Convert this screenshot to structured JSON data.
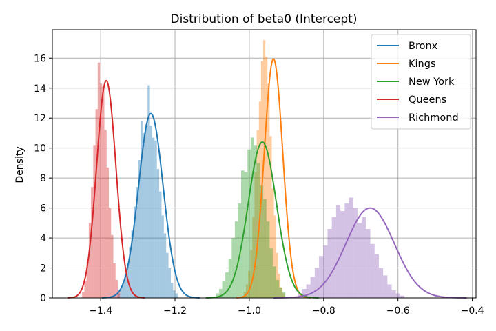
{
  "chart_data": {
    "type": "histogram+kde",
    "title": "Distribution of beta0  (Intercept)",
    "xlabel": "",
    "ylabel": "Density",
    "xlim": [
      -1.53,
      -0.39
    ],
    "ylim": [
      0,
      17.9
    ],
    "xticks": [
      -1.4,
      -1.2,
      -1.0,
      -0.8,
      -0.6,
      -0.4
    ],
    "xtick_labels": [
      "−1.4",
      "−1.2",
      "−1.0",
      "−0.8",
      "−0.6",
      "−0.4"
    ],
    "yticks": [
      0,
      2,
      4,
      6,
      8,
      10,
      12,
      14,
      16
    ],
    "ytick_labels": [
      "0",
      "2",
      "4",
      "6",
      "8",
      "10",
      "12",
      "14",
      "16"
    ],
    "grid": true,
    "legend_position": "top-right",
    "series": [
      {
        "name": "Bronx",
        "color": "#1f77b4",
        "mean": -1.265,
        "sd": 0.033,
        "kde_peak": 12.3,
        "bins": {
          "start": -1.355,
          "width": 0.00625,
          "heights": [
            0.3,
            0.6,
            1.0,
            1.5,
            2.3,
            3.4,
            4.5,
            6.1,
            7.4,
            9.2,
            11.8,
            11.0,
            11.6,
            14.2,
            11.5,
            10.7,
            10.5,
            8.6,
            7.1,
            5.5,
            4.3,
            3.0,
            2.0,
            1.0,
            0.5,
            0.3
          ]
        }
      },
      {
        "name": "Kings",
        "color": "#ff7f0e",
        "mean": -0.935,
        "sd": 0.025,
        "kde_peak": 15.95,
        "bins": {
          "start": -1.015,
          "width": 0.0058,
          "heights": [
            0.4,
            0.9,
            1.8,
            3.2,
            5.4,
            8.4,
            11.2,
            13.1,
            15.8,
            17.2,
            16.1,
            14.3,
            10.8,
            7.3,
            5.5,
            3.0,
            1.6,
            0.7,
            0.3
          ]
        }
      },
      {
        "name": "New York",
        "color": "#2ca02c",
        "mean": -0.965,
        "sd": 0.038,
        "kde_peak": 10.4,
        "bins": {
          "start": -1.09,
          "width": 0.0085,
          "heights": [
            0.3,
            0.6,
            1.1,
            1.7,
            2.6,
            4.0,
            5.1,
            6.3,
            8.5,
            8.4,
            9.9,
            10.7,
            10.2,
            9.0,
            7.5,
            6.6,
            5.1,
            3.3,
            2.1,
            1.2,
            0.7,
            0.4
          ]
        }
      },
      {
        "name": "Queens",
        "color": "#d62728",
        "mean": -1.385,
        "sd": 0.026,
        "kde_peak": 14.5,
        "bins": {
          "start": -1.45,
          "width": 0.006,
          "heights": [
            0.4,
            1.1,
            2.4,
            5.0,
            7.4,
            10.2,
            12.6,
            15.7,
            14.3,
            14.1,
            11.2,
            8.7,
            6.0,
            4.2,
            2.3,
            1.2,
            0.5
          ]
        }
      },
      {
        "name": "Richmond",
        "color": "#9467bd",
        "mean": -0.675,
        "sd": 0.065,
        "kde_peak": 6.0,
        "bins": {
          "start": -0.87,
          "width": 0.0115,
          "heights": [
            0.3,
            0.6,
            0.9,
            1.4,
            2.0,
            2.8,
            3.5,
            4.6,
            5.4,
            6.2,
            5.8,
            6.3,
            6.7,
            6.0,
            5.0,
            5.4,
            4.6,
            3.6,
            2.9,
            2.0,
            1.5,
            0.9,
            0.5,
            0.3,
            0.15
          ]
        }
      }
    ]
  }
}
